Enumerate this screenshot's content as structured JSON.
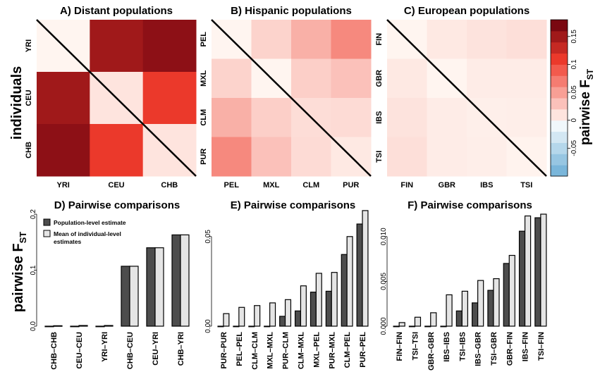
{
  "labels": {
    "y_axis_top": "individuals",
    "y_axis_bottom_main": "pairwise F",
    "y_axis_bottom_sub": "ST",
    "colorbar_main": "pairwise F",
    "colorbar_sub": "ST"
  },
  "colorbar": {
    "min": -0.1,
    "max": 0.18,
    "ticks": [
      "-0.05",
      "0",
      "0.05",
      "0.1",
      "0.15"
    ],
    "tick_values": [
      -0.05,
      0,
      0.05,
      0.1,
      0.15
    ],
    "negative_color": "#6baed6",
    "positive_color": "#67000d"
  },
  "legend": {
    "population": "Population-level estimate",
    "mean_line1": "Mean of individual-level",
    "mean_line2": "estimates",
    "population_color": "#4d4d4d",
    "mean_color": "#e5e5e5"
  },
  "chart_data": [
    {
      "type": "heatmap",
      "title": "A) Distant populations",
      "populations": [
        "YRI",
        "CEU",
        "CHB"
      ],
      "x_order": [
        "YRI",
        "CEU",
        "CHB"
      ],
      "y_order": [
        "YRI",
        "CEU",
        "CHB"
      ],
      "upper_fst": [
        [
          0,
          0.15,
          0.165
        ],
        [
          0.15,
          0,
          0.11
        ],
        [
          0.165,
          0.11,
          0
        ]
      ],
      "lower_fst": [
        [
          0.01,
          0.14,
          0.16
        ],
        [
          0.14,
          0.01,
          0.11
        ],
        [
          0.16,
          0.11,
          0.01
        ]
      ]
    },
    {
      "type": "heatmap",
      "title": "B) Hispanic populations",
      "populations": [
        "PEL",
        "MXL",
        "CLM",
        "PUR"
      ],
      "x_order": [
        "PEL",
        "MXL",
        "CLM",
        "PUR"
      ],
      "y_order": [
        "PEL",
        "MXL",
        "CLM",
        "PUR"
      ],
      "upper_fst": [
        [
          0,
          0.02,
          0.04,
          0.058
        ],
        [
          0.02,
          0,
          0.008,
          0.02
        ],
        [
          0.04,
          0.008,
          0,
          0.006
        ],
        [
          0.058,
          0.02,
          0.006,
          0
        ]
      ],
      "lower_fst": [
        [
          0.03,
          0.03,
          0.05,
          0.063
        ],
        [
          0.03,
          0.012,
          0.022,
          0.03
        ],
        [
          0.05,
          0.022,
          0.014,
          0.015
        ],
        [
          0.063,
          0.03,
          0.015,
          0.007
        ]
      ]
    },
    {
      "type": "heatmap",
      "title": "C) European populations",
      "populations": [
        "FIN",
        "GBR",
        "IBS",
        "TSI"
      ],
      "x_order": [
        "FIN",
        "GBR",
        "IBS",
        "TSI"
      ],
      "y_order": [
        "FIN",
        "GBR",
        "IBS",
        "TSI"
      ],
      "upper_fst": [
        [
          0,
          0.007,
          0.0105,
          0.012
        ],
        [
          0.007,
          0,
          0.0025,
          0.004
        ],
        [
          0.0105,
          0.0025,
          0,
          0.0017
        ],
        [
          0.012,
          0.004,
          0.0017,
          0
        ]
      ],
      "lower_fst": [
        [
          0.0003,
          0.008,
          0.012,
          0.0125
        ],
        [
          0.008,
          0.0015,
          0.005,
          0.0052
        ],
        [
          0.012,
          0.005,
          0.0035,
          0.0039
        ],
        [
          0.0125,
          0.0052,
          0.0039,
          0.0009
        ]
      ]
    },
    {
      "type": "bar",
      "title": "D) Pairwise comparisons",
      "categories": [
        "CHB–CHB",
        "CEU–CEU",
        "YRI–YRI",
        "CHB–CEU",
        "CEU–YRI",
        "CHB–YRI"
      ],
      "ylim": [
        0,
        0.2
      ],
      "yticks": [
        "0.0",
        "0.1",
        "0.2"
      ],
      "ytick_values": [
        0,
        0.1,
        0.2
      ],
      "series": [
        {
          "name": "Population-level estimate",
          "values": [
            0,
            0,
            0,
            0.107,
            0.14,
            0.163
          ]
        },
        {
          "name": "Mean of individual-level estimates",
          "values": [
            0.0008,
            0.0012,
            0.0012,
            0.107,
            0.14,
            0.163
          ]
        }
      ]
    },
    {
      "type": "bar",
      "title": "E) Pairwise comparisons",
      "categories": [
        "PUR–PUR",
        "PEL–PEL",
        "CLM–CLM",
        "MXL–MXL",
        "PUR–CLM",
        "CLM–MXL",
        "MXL–PEL",
        "PUR–MXL",
        "CLM–PEL",
        "PUR–PEL"
      ],
      "ylim": [
        0,
        0.0625
      ],
      "yticks": [
        "0.00",
        "0.05"
      ],
      "ytick_values": [
        0,
        0.05
      ],
      "series": [
        {
          "name": "Population-level estimate",
          "values": [
            0,
            0,
            0,
            0,
            0.0055,
            0.0085,
            0.019,
            0.0195,
            0.04,
            0.057
          ]
        },
        {
          "name": "Mean of individual-level estimates",
          "values": [
            0.007,
            0.0105,
            0.0115,
            0.013,
            0.0148,
            0.0225,
            0.0295,
            0.03,
            0.05,
            0.0645
          ]
        }
      ]
    },
    {
      "type": "bar",
      "title": "F) Pairwise comparisons",
      "categories": [
        "FIN–FIN",
        "TSI–TSI",
        "GBR–GBR",
        "IBS–IBS",
        "TSI–IBS",
        "IBS–GBR",
        "TSI–GBR",
        "GBR–FIN",
        "IBS–FIN",
        "TSI–FIN"
      ],
      "ylim": [
        0,
        0.0125
      ],
      "yticks": [
        "0.000",
        "0.005",
        "0.010"
      ],
      "ytick_values": [
        0,
        0.005,
        0.01
      ],
      "series": [
        {
          "name": "Population-level estimate",
          "values": [
            0,
            0,
            0,
            0,
            0.0017,
            0.0026,
            0.004,
            0.007,
            0.0106,
            0.0121
          ]
        },
        {
          "name": "Mean of individual-level estimates",
          "values": [
            0.0004,
            0.001,
            0.0015,
            0.0035,
            0.0039,
            0.0051,
            0.0053,
            0.0079,
            0.0123,
            0.0125
          ]
        }
      ]
    }
  ]
}
